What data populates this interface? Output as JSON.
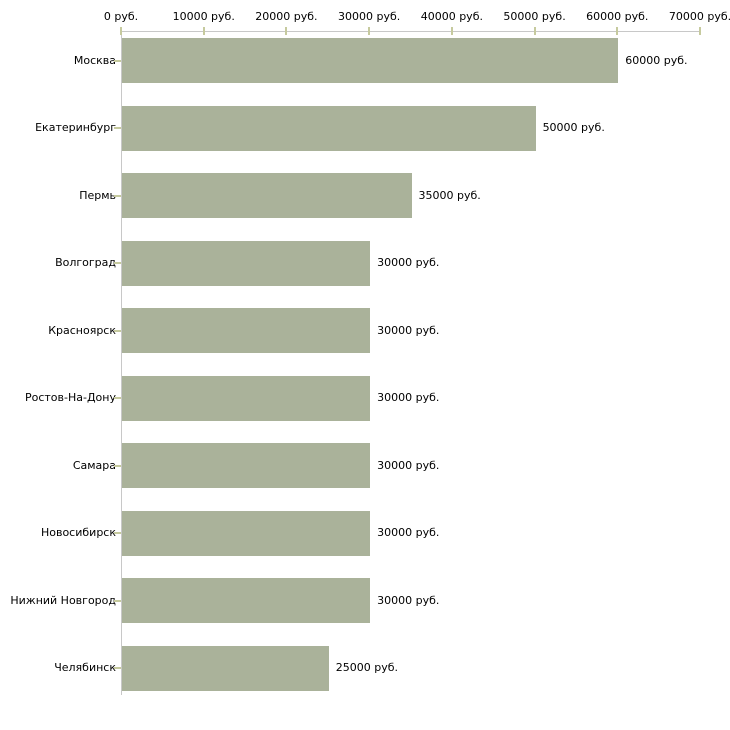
{
  "chart_data": {
    "type": "bar",
    "orientation": "horizontal",
    "title": "",
    "xlabel": "",
    "ylabel": "",
    "unit": "руб.",
    "categories": [
      "Москва",
      "Екатеринбург",
      "Пермь",
      "Волгоград",
      "Красноярск",
      "Ростов-На-Дону",
      "Самара",
      "Новосибирск",
      "Нижний Новгород",
      "Челябинск"
    ],
    "values": [
      60000,
      50000,
      35000,
      30000,
      30000,
      30000,
      30000,
      30000,
      30000,
      25000
    ],
    "value_labels": [
      "60000 руб.",
      "50000 руб.",
      "35000 руб.",
      "30000 руб.",
      "30000 руб.",
      "30000 руб.",
      "30000 руб.",
      "30000 руб.",
      "30000 руб.",
      "25000 руб."
    ],
    "x_ticks": [
      0,
      10000,
      20000,
      30000,
      40000,
      50000,
      60000,
      70000
    ],
    "x_tick_labels": [
      "0 руб.",
      "10000 руб.",
      "20000 руб.",
      "30000 руб.",
      "40000 руб.",
      "50000 руб.",
      "60000 руб.",
      "70000 руб."
    ],
    "xlim": [
      0,
      70000
    ],
    "grid": false,
    "legend": null,
    "colors": {
      "bar": "#aab29a",
      "axis_line": "#c8c8c8",
      "tick_mark": "#c6ca9e",
      "text": "#000000",
      "background": "#ffffff"
    }
  }
}
